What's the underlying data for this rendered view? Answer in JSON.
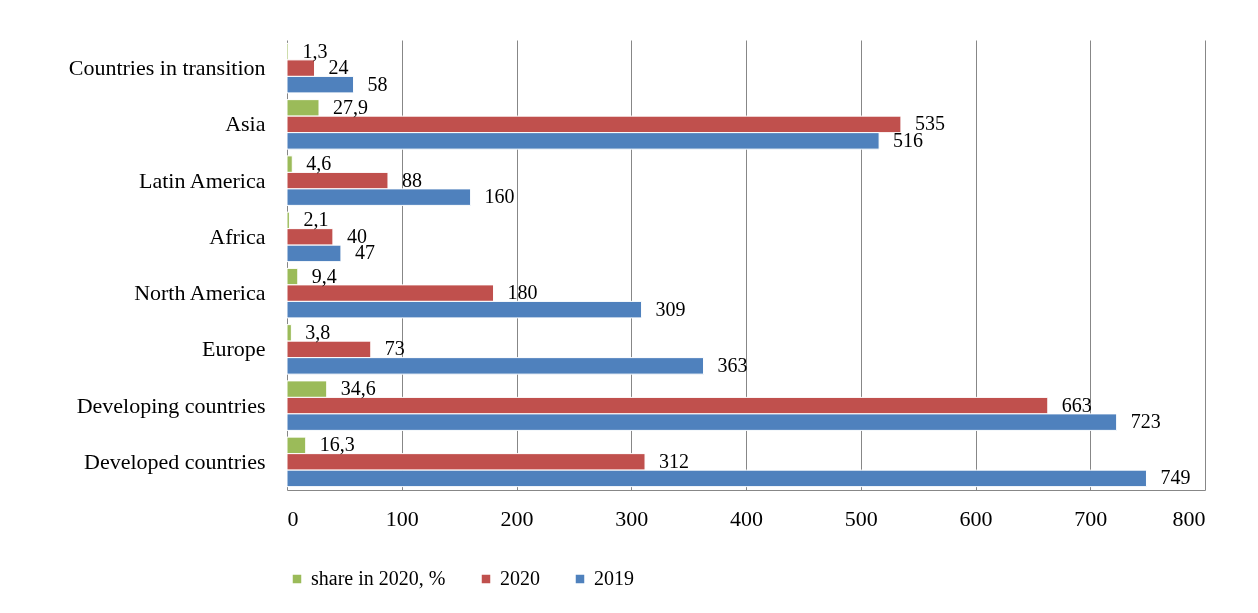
{
  "chart_data": {
    "type": "bar",
    "orientation": "horizontal",
    "categories": [
      "Countries in transition",
      "Asia",
      "Latin America",
      "Africa",
      "North America",
      "Europe",
      "Developing countries",
      "Developed countries"
    ],
    "series": [
      {
        "name": "share in 2020, %",
        "color": "#9bbb59",
        "values": [
          1.3,
          27.9,
          4.6,
          2.1,
          9.4,
          3.8,
          34.6,
          16.3
        ],
        "value_labels": [
          "1,3",
          "27,9",
          "4,6",
          "2,1",
          "9,4",
          "3,8",
          "34,6",
          "16,3"
        ]
      },
      {
        "name": "2020",
        "color": "#c0504d",
        "values": [
          24,
          535,
          88,
          40,
          180,
          73,
          663,
          312
        ],
        "value_labels": [
          "24",
          "535",
          "88",
          "40",
          "180",
          "73",
          "663",
          "312"
        ]
      },
      {
        "name": "2019",
        "color": "#4f81bd",
        "values": [
          58,
          516,
          160,
          47,
          309,
          363,
          723,
          749
        ],
        "value_labels": [
          "58",
          "516",
          "160",
          "47",
          "309",
          "363",
          "723",
          "749"
        ]
      }
    ],
    "xlim": [
      0,
      800
    ],
    "xticks": [
      0,
      100,
      200,
      300,
      400,
      500,
      600,
      700,
      800
    ],
    "grid": "x",
    "legend": "bottom"
  }
}
